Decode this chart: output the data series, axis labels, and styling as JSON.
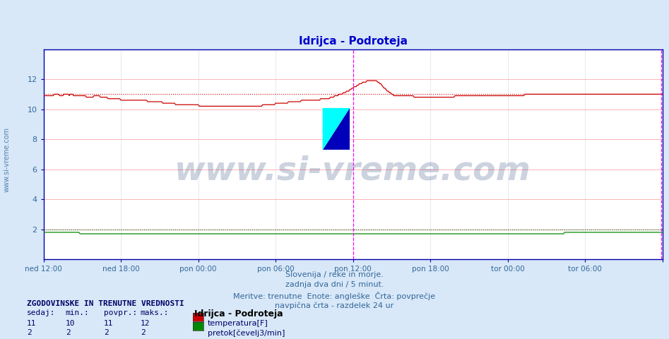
{
  "title": "Idrijca - Podroteja",
  "title_color": "#0000cc",
  "title_fontsize": 11,
  "bg_color": "#d8e8f8",
  "plot_bg_color": "#ffffff",
  "grid_color_major": "#ffaaaa",
  "grid_color_minor": "#ddddee",
  "xlabel_color": "#336699",
  "ylabel_color": "#336699",
  "axis_color": "#0000aa",
  "spine_color": "#0000aa",
  "ylim": [
    0,
    14
  ],
  "yticks": [
    2,
    4,
    6,
    8,
    10,
    12
  ],
  "n_points": 577,
  "x_tick_positions": [
    0,
    72,
    144,
    216,
    288,
    360,
    432,
    504,
    576
  ],
  "x_tick_labels": [
    "ned 12:00",
    "ned 18:00",
    "pon 00:00",
    "pon 06:00",
    "pon 12:00",
    "pon 18:00",
    "tor 00:00",
    "tor 06:00",
    ""
  ],
  "avg_line_color_temp": "#cc0000",
  "avg_line_color_flow": "#006600",
  "avg_temp": 11,
  "avg_flow": 2,
  "vline1_x": 288,
  "vline2_x": 575,
  "vline_color": "#ff00ff",
  "watermark_text": "www.si-vreme.com",
  "watermark_color": "#1a3a6e",
  "watermark_alpha": 0.22,
  "watermark_fontsize": 34,
  "sidebar_text": "www.si-vreme.com",
  "sidebar_color": "#336699",
  "sidebar_fontsize": 7,
  "footer_lines": [
    "Slovenija / reke in morje.",
    "zadnja dva dni / 5 minut.",
    "Meritve: trenutne  Enote: angleške  Črta: povprečje",
    "navpična črta - razdelek 24 ur"
  ],
  "footer_color": "#336699",
  "footer_fontsize": 8,
  "legend_title": "Idrijca - Podroteja",
  "legend_title_color": "#000000",
  "legend_title_fontsize": 9,
  "legend_items": [
    {
      "label": "temperatura[F]",
      "color": "#cc0000"
    },
    {
      "label": "pretok[čevelj3/min]",
      "color": "#008800"
    }
  ],
  "stats_header": "ZGODOVINSKE IN TRENUTNE VREDNOSTI",
  "stats_cols": [
    "sedaj:",
    "min.:",
    "povpr.:",
    "maks.:"
  ],
  "stats_rows": [
    [
      11,
      10,
      11,
      12
    ],
    [
      2,
      2,
      2,
      2
    ]
  ],
  "stats_color": "#000066",
  "stats_fontsize": 8,
  "temp_data": [
    10.9,
    10.9,
    10.9,
    10.9,
    10.9,
    10.9,
    10.9,
    10.9,
    10.9,
    10.9,
    11.0,
    11.0,
    11.0,
    11.0,
    11.0,
    10.9,
    10.9,
    10.9,
    10.9,
    11.0,
    11.0,
    11.0,
    11.0,
    11.0,
    10.9,
    11.0,
    11.0,
    11.0,
    10.9,
    10.9,
    10.9,
    10.9,
    10.9,
    10.9,
    10.9,
    10.9,
    10.9,
    10.9,
    10.9,
    10.9,
    10.8,
    10.8,
    10.8,
    10.8,
    10.8,
    10.8,
    10.8,
    10.9,
    10.9,
    10.9,
    10.9,
    10.9,
    10.9,
    10.8,
    10.8,
    10.8,
    10.8,
    10.8,
    10.8,
    10.8,
    10.7,
    10.7,
    10.7,
    10.7,
    10.7,
    10.7,
    10.7,
    10.7,
    10.7,
    10.7,
    10.7,
    10.7,
    10.6,
    10.6,
    10.6,
    10.6,
    10.6,
    10.6,
    10.6,
    10.6,
    10.6,
    10.6,
    10.6,
    10.6,
    10.6,
    10.6,
    10.6,
    10.6,
    10.6,
    10.6,
    10.6,
    10.6,
    10.6,
    10.6,
    10.6,
    10.6,
    10.6,
    10.5,
    10.5,
    10.5,
    10.5,
    10.5,
    10.5,
    10.5,
    10.5,
    10.5,
    10.5,
    10.5,
    10.5,
    10.5,
    10.5,
    10.4,
    10.4,
    10.4,
    10.4,
    10.4,
    10.4,
    10.4,
    10.4,
    10.4,
    10.4,
    10.4,
    10.4,
    10.3,
    10.3,
    10.3,
    10.3,
    10.3,
    10.3,
    10.3,
    10.3,
    10.3,
    10.3,
    10.3,
    10.3,
    10.3,
    10.3,
    10.3,
    10.3,
    10.3,
    10.3,
    10.3,
    10.3,
    10.3,
    10.3,
    10.2,
    10.2,
    10.2,
    10.2,
    10.2,
    10.2,
    10.2,
    10.2,
    10.2,
    10.2,
    10.2,
    10.2,
    10.2,
    10.2,
    10.2,
    10.2,
    10.2,
    10.2,
    10.2,
    10.2,
    10.2,
    10.2,
    10.2,
    10.2,
    10.2,
    10.2,
    10.2,
    10.2,
    10.2,
    10.2,
    10.2,
    10.2,
    10.2,
    10.2,
    10.2,
    10.2,
    10.2,
    10.2,
    10.2,
    10.2,
    10.2,
    10.2,
    10.2,
    10.2,
    10.2,
    10.2,
    10.2,
    10.2,
    10.2,
    10.2,
    10.2,
    10.2,
    10.2,
    10.2,
    10.2,
    10.2,
    10.2,
    10.2,
    10.2,
    10.3,
    10.3,
    10.3,
    10.3,
    10.3,
    10.3,
    10.3,
    10.3,
    10.3,
    10.3,
    10.3,
    10.3,
    10.4,
    10.4,
    10.4,
    10.4,
    10.4,
    10.4,
    10.4,
    10.4,
    10.4,
    10.4,
    10.4,
    10.4,
    10.5,
    10.5,
    10.5,
    10.5,
    10.5,
    10.5,
    10.5,
    10.5,
    10.5,
    10.5,
    10.5,
    10.5,
    10.6,
    10.6,
    10.6,
    10.6,
    10.6,
    10.6,
    10.6,
    10.6,
    10.6,
    10.6,
    10.6,
    10.6,
    10.6,
    10.6,
    10.6,
    10.6,
    10.6,
    10.6,
    10.7,
    10.7,
    10.7,
    10.7,
    10.7,
    10.7,
    10.7,
    10.7,
    10.7,
    10.8,
    10.8,
    10.8,
    10.8,
    10.9,
    10.9,
    10.9,
    10.9,
    11.0,
    11.0,
    11.0,
    11.0,
    11.1,
    11.1,
    11.1,
    11.2,
    11.2,
    11.2,
    11.3,
    11.3,
    11.4,
    11.4,
    11.5,
    11.5,
    11.5,
    11.6,
    11.6,
    11.7,
    11.7,
    11.7,
    11.8,
    11.8,
    11.8,
    11.8,
    11.9,
    11.9,
    11.9,
    11.9,
    11.9,
    11.9,
    11.9,
    11.9,
    11.9,
    11.9,
    11.8,
    11.8,
    11.7,
    11.7,
    11.6,
    11.5,
    11.4,
    11.4,
    11.3,
    11.2,
    11.2,
    11.1,
    11.1,
    11.0,
    11.0,
    10.9,
    10.9,
    10.9,
    10.9,
    10.9,
    10.9,
    10.9,
    10.9,
    10.9,
    10.9,
    10.9,
    10.9,
    10.9,
    10.9,
    10.9,
    10.9,
    10.9,
    10.9,
    10.9,
    10.8,
    10.8,
    10.8,
    10.8,
    10.8,
    10.8,
    10.8,
    10.8,
    10.8,
    10.8,
    10.8,
    10.8,
    10.8,
    10.8,
    10.8,
    10.8,
    10.8,
    10.8,
    10.8,
    10.8,
    10.8,
    10.8,
    10.8,
    10.8,
    10.8,
    10.8,
    10.8,
    10.8,
    10.8,
    10.8,
    10.8,
    10.8,
    10.8,
    10.8,
    10.8,
    10.8,
    10.8,
    10.8,
    10.9,
    10.9,
    10.9,
    10.9,
    10.9,
    10.9,
    10.9,
    10.9,
    10.9,
    10.9,
    10.9,
    10.9,
    10.9,
    10.9,
    10.9,
    10.9,
    10.9,
    10.9,
    10.9,
    10.9,
    10.9,
    10.9,
    10.9,
    10.9,
    10.9,
    10.9,
    10.9,
    10.9,
    10.9,
    10.9,
    10.9,
    10.9,
    10.9,
    10.9,
    10.9,
    10.9,
    10.9,
    10.9,
    10.9,
    10.9,
    10.9,
    10.9,
    10.9,
    10.9,
    10.9,
    10.9,
    10.9,
    10.9,
    10.9,
    10.9,
    10.9,
    10.9,
    10.9,
    10.9,
    10.9,
    10.9,
    10.9,
    10.9,
    10.9,
    10.9,
    10.9,
    10.9,
    10.9,
    10.9,
    10.9,
    11.0,
    11.0,
    11.0,
    11.0,
    11.0,
    11.0,
    11.0,
    11.0,
    11.0,
    11.0,
    11.0,
    11.0,
    11.0,
    11.0,
    11.0,
    11.0,
    11.0,
    11.0,
    11.0,
    11.0,
    11.0,
    11.0,
    11.0,
    11.0,
    11.0,
    11.0,
    11.0,
    11.0,
    11.0,
    11.0,
    11.0,
    11.0,
    11.0,
    11.0,
    11.0,
    11.0,
    11.0,
    11.0,
    11.0,
    11.0,
    11.0,
    11.0,
    11.0,
    11.0,
    11.0,
    11.0,
    11.0,
    11.0,
    11.0,
    11.0,
    11.0,
    11.0,
    11.0,
    11.0,
    11.0,
    11.0,
    11.0,
    11.0,
    11.0,
    11.0,
    11.0,
    11.0,
    11.0,
    11.0,
    11.0,
    11.0,
    11.0,
    11.0
  ],
  "flow_data": [
    1.8,
    1.8,
    1.8,
    1.8,
    1.8,
    1.8,
    1.8,
    1.8,
    1.8,
    1.8,
    1.8,
    1.8,
    1.8,
    1.8,
    1.8,
    1.8,
    1.8,
    1.8,
    1.8,
    1.8,
    1.8,
    1.8,
    1.8,
    1.8,
    1.8,
    1.8,
    1.8,
    1.8,
    1.8,
    1.8,
    1.8,
    1.8,
    1.8,
    1.8,
    1.7,
    1.7,
    1.7,
    1.7,
    1.7,
    1.7,
    1.7,
    1.7,
    1.7,
    1.7,
    1.7,
    1.7,
    1.7,
    1.7,
    1.7,
    1.7,
    1.7,
    1.7,
    1.7,
    1.7,
    1.7,
    1.7,
    1.7,
    1.7,
    1.7,
    1.7,
    1.7,
    1.7,
    1.7,
    1.7,
    1.7,
    1.7,
    1.7,
    1.7,
    1.7,
    1.7,
    1.7,
    1.7,
    1.7,
    1.7,
    1.7,
    1.7,
    1.7,
    1.7,
    1.7,
    1.7,
    1.7,
    1.7,
    1.7,
    1.7,
    1.7,
    1.7,
    1.7,
    1.7,
    1.7,
    1.7,
    1.7,
    1.7,
    1.7,
    1.7,
    1.7,
    1.7,
    1.7,
    1.7,
    1.7,
    1.7,
    1.7,
    1.7,
    1.7,
    1.7,
    1.7,
    1.7,
    1.7,
    1.7,
    1.7,
    1.7,
    1.7,
    1.7,
    1.7,
    1.7,
    1.7,
    1.7,
    1.7,
    1.7,
    1.7,
    1.7,
    1.7,
    1.7,
    1.7,
    1.7,
    1.7,
    1.7,
    1.7,
    1.7,
    1.7,
    1.7,
    1.7,
    1.7,
    1.7,
    1.7,
    1.7,
    1.7,
    1.7,
    1.7,
    1.7,
    1.7,
    1.7,
    1.7,
    1.7,
    1.7,
    1.7,
    1.7,
    1.7,
    1.7,
    1.7,
    1.7,
    1.7,
    1.7,
    1.7,
    1.7,
    1.7,
    1.7,
    1.7,
    1.7,
    1.7,
    1.7,
    1.7,
    1.7,
    1.7,
    1.7,
    1.7,
    1.7,
    1.7,
    1.7,
    1.7,
    1.7,
    1.7,
    1.7,
    1.7,
    1.7,
    1.7,
    1.7,
    1.7,
    1.7,
    1.7,
    1.7,
    1.7,
    1.7,
    1.7,
    1.7,
    1.7,
    1.7,
    1.7,
    1.7,
    1.7,
    1.7,
    1.7,
    1.7,
    1.7,
    1.7,
    1.7,
    1.7,
    1.7,
    1.7,
    1.7,
    1.7,
    1.7,
    1.7,
    1.7,
    1.7,
    1.7,
    1.7,
    1.7,
    1.7,
    1.7,
    1.7,
    1.7,
    1.7,
    1.7,
    1.7,
    1.7,
    1.7,
    1.7,
    1.7,
    1.7,
    1.7,
    1.7,
    1.7,
    1.7,
    1.7,
    1.7,
    1.7,
    1.7,
    1.7,
    1.7,
    1.7,
    1.7,
    1.7,
    1.7,
    1.7,
    1.7,
    1.7,
    1.7,
    1.7,
    1.7,
    1.7,
    1.7,
    1.7,
    1.7,
    1.7,
    1.7,
    1.7,
    1.7,
    1.7,
    1.7,
    1.7,
    1.7,
    1.7,
    1.7,
    1.7,
    1.7,
    1.7,
    1.7,
    1.7,
    1.7,
    1.7,
    1.7,
    1.7,
    1.7,
    1.7,
    1.7,
    1.7,
    1.7,
    1.7,
    1.7,
    1.7,
    1.7,
    1.7,
    1.7,
    1.7,
    1.7,
    1.7,
    1.7,
    1.7,
    1.7,
    1.7,
    1.7,
    1.7,
    1.7,
    1.7,
    1.7,
    1.7,
    1.7,
    1.7,
    1.7,
    1.7,
    1.7,
    1.7,
    1.7,
    1.7,
    1.7,
    1.7,
    1.7,
    1.7,
    1.7,
    1.7,
    1.7,
    1.7,
    1.7,
    1.7,
    1.7,
    1.7,
    1.7,
    1.7,
    1.7,
    1.7,
    1.7,
    1.7,
    1.7,
    1.7,
    1.7,
    1.7,
    1.7,
    1.7,
    1.7,
    1.7,
    1.7,
    1.7,
    1.7,
    1.7,
    1.7,
    1.7,
    1.7,
    1.7,
    1.7,
    1.7,
    1.7,
    1.7,
    1.7,
    1.7,
    1.7,
    1.7,
    1.7,
    1.7,
    1.7,
    1.7,
    1.7,
    1.7,
    1.7,
    1.7,
    1.7,
    1.7,
    1.7,
    1.7,
    1.7,
    1.7,
    1.7,
    1.7,
    1.7,
    1.7,
    1.7,
    1.7,
    1.7,
    1.7,
    1.7,
    1.7,
    1.7,
    1.7,
    1.7,
    1.7,
    1.7,
    1.7,
    1.7,
    1.7,
    1.7,
    1.7,
    1.7,
    1.7,
    1.7,
    1.7,
    1.7,
    1.7,
    1.7,
    1.7,
    1.7,
    1.7,
    1.7,
    1.7,
    1.7,
    1.7,
    1.7,
    1.7,
    1.7,
    1.7,
    1.7,
    1.7,
    1.7,
    1.7,
    1.7,
    1.7,
    1.7,
    1.7,
    1.7,
    1.7,
    1.7,
    1.7,
    1.7,
    1.7,
    1.7,
    1.7,
    1.7,
    1.7,
    1.7,
    1.7,
    1.7,
    1.7,
    1.7,
    1.7,
    1.7,
    1.7,
    1.7,
    1.7,
    1.7,
    1.7,
    1.7,
    1.7,
    1.7,
    1.7,
    1.7,
    1.7,
    1.7,
    1.7,
    1.7,
    1.7,
    1.7,
    1.7,
    1.7,
    1.7,
    1.7,
    1.7,
    1.7,
    1.7,
    1.7,
    1.7,
    1.7,
    1.7,
    1.7,
    1.7,
    1.7,
    1.7,
    1.7,
    1.7,
    1.7,
    1.7,
    1.7,
    1.7,
    1.7,
    1.7,
    1.7,
    1.7,
    1.7,
    1.7,
    1.7,
    1.7,
    1.7,
    1.7,
    1.7,
    1.7,
    1.7,
    1.7,
    1.7,
    1.7,
    1.7,
    1.7,
    1.7,
    1.7,
    1.7,
    1.7,
    1.7,
    1.7,
    1.7,
    1.7,
    1.7,
    1.7,
    1.7,
    1.7,
    1.7,
    1.7,
    1.7,
    1.7,
    1.7,
    1.8,
    1.8,
    1.8,
    1.8,
    1.8,
    1.8,
    1.8,
    1.8,
    1.8,
    1.8,
    1.8,
    1.8,
    1.8,
    1.8,
    1.8,
    1.8,
    1.8,
    1.8,
    1.8,
    1.8,
    1.8,
    1.8,
    1.8,
    1.8,
    1.8,
    1.8,
    1.8,
    1.8,
    1.8,
    1.8,
    1.8,
    1.8,
    1.8,
    1.8,
    1.8,
    1.8,
    1.8,
    1.8,
    1.8,
    1.8,
    1.8,
    1.8,
    1.8,
    1.8,
    1.8,
    1.8,
    1.8,
    1.8,
    1.8,
    1.8,
    1.8,
    1.8,
    1.8,
    1.8,
    1.8,
    1.8,
    1.8,
    1.8,
    1.8,
    1.8,
    1.8,
    1.8,
    1.8,
    1.8,
    1.8,
    1.8,
    1.8,
    1.8
  ]
}
